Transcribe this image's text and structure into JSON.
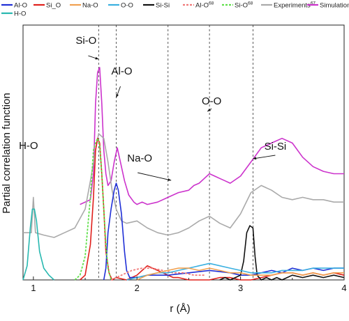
{
  "chart_data": {
    "type": "line",
    "xlabel": "r (Å)",
    "ylabel": "Partial correlation function",
    "xlim": [
      0.9,
      4.0
    ],
    "x_ticks": [
      "1",
      "2",
      "3",
      "4"
    ],
    "grid": false,
    "legend_placement": "top",
    "legend": [
      {
        "label": "Al-O",
        "color": "#1f2fd6",
        "style": "solid"
      },
      {
        "label": "Si_O",
        "color": "#e0201c",
        "style": "solid"
      },
      {
        "label": "Na-O",
        "color": "#f0a050",
        "style": "solid"
      },
      {
        "label": "O-O",
        "color": "#3ab0e0",
        "style": "solid"
      },
      {
        "label": "Si-Si",
        "color": "#111111",
        "style": "solid"
      },
      {
        "label": "Al-O",
        "sup": "68",
        "color": "#f07a7a",
        "style": "dashed"
      },
      {
        "label": "Si-O",
        "sup": "68",
        "color": "#5fe04a",
        "style": "dashed"
      },
      {
        "label": "Experiments",
        "sup": "67",
        "color": "#aaaaaa",
        "style": "solid"
      },
      {
        "label": "Simulation",
        "sup": "69",
        "color": "#cc33cc",
        "style": "solid"
      },
      {
        "label": "H-O",
        "color": "#28b8b0",
        "style": "solid"
      }
    ],
    "annotations": [
      {
        "text": "Si-O",
        "x": 1.63
      },
      {
        "text": "Al-O",
        "x": 1.8
      },
      {
        "text": "O-O",
        "x": 2.68
      },
      {
        "text": "H-O",
        "x": 1.0
      },
      {
        "text": "Na-O",
        "x": 2.33
      },
      {
        "text": "Si-Si",
        "x": 3.12
      }
    ],
    "reference_lines_x": [
      1.63,
      1.8,
      2.3,
      2.7,
      3.12
    ],
    "series": [
      {
        "name": "Simulation",
        "color": "#cc33cc",
        "x": [
          1.45,
          1.55,
          1.58,
          1.6,
          1.62,
          1.64,
          1.66,
          1.68,
          1.7,
          1.72,
          1.75,
          1.78,
          1.81,
          1.84,
          1.88,
          1.92,
          1.97,
          2.0,
          2.05,
          2.1,
          2.2,
          2.3,
          2.4,
          2.5,
          2.55,
          2.6,
          2.65,
          2.7,
          2.75,
          2.8,
          2.85,
          2.9,
          3.0,
          3.1,
          3.15,
          3.2,
          3.3,
          3.4,
          3.5,
          3.6,
          3.7,
          3.8,
          3.9,
          4.0
        ],
        "y": [
          0.32,
          0.34,
          0.45,
          0.75,
          0.88,
          0.9,
          0.75,
          0.55,
          0.45,
          0.4,
          0.42,
          0.5,
          0.56,
          0.5,
          0.42,
          0.36,
          0.33,
          0.32,
          0.33,
          0.32,
          0.33,
          0.35,
          0.37,
          0.38,
          0.4,
          0.41,
          0.43,
          0.45,
          0.44,
          0.43,
          0.42,
          0.41,
          0.44,
          0.5,
          0.53,
          0.56,
          0.58,
          0.6,
          0.58,
          0.52,
          0.48,
          0.46,
          0.45,
          0.45
        ]
      },
      {
        "name": "Experiments",
        "color": "#aaaaaa",
        "x": [
          0.9,
          0.98,
          1.0,
          1.02,
          1.1,
          1.2,
          1.3,
          1.4,
          1.5,
          1.55,
          1.6,
          1.63,
          1.68,
          1.72,
          1.76,
          1.8,
          1.85,
          1.9,
          2.0,
          2.1,
          2.2,
          2.3,
          2.4,
          2.5,
          2.6,
          2.7,
          2.8,
          2.9,
          3.0,
          3.1,
          3.2,
          3.3,
          3.4,
          3.5,
          3.6,
          3.7,
          3.8,
          3.9,
          4.0
        ],
        "y": [
          0.2,
          0.2,
          0.35,
          0.2,
          0.19,
          0.18,
          0.2,
          0.22,
          0.3,
          0.42,
          0.55,
          0.62,
          0.6,
          0.5,
          0.38,
          0.3,
          0.25,
          0.24,
          0.25,
          0.22,
          0.2,
          0.19,
          0.2,
          0.22,
          0.25,
          0.27,
          0.24,
          0.22,
          0.28,
          0.37,
          0.4,
          0.38,
          0.35,
          0.34,
          0.35,
          0.34,
          0.34,
          0.33,
          0.33
        ]
      },
      {
        "name": "Si_O",
        "color": "#e0201c",
        "x": [
          1.45,
          1.5,
          1.55,
          1.58,
          1.6,
          1.62,
          1.64,
          1.66,
          1.68,
          1.7,
          1.73,
          1.76,
          1.8,
          1.9,
          2.0,
          2.05,
          2.1,
          2.15,
          2.2,
          2.25,
          2.3,
          2.35,
          2.4,
          2.5,
          2.6,
          2.7,
          2.8,
          2.9,
          3.0,
          3.1,
          3.2,
          3.3,
          3.4,
          3.5,
          3.6,
          3.7,
          3.8,
          3.9,
          4.0
        ],
        "y": [
          0,
          0.02,
          0.15,
          0.35,
          0.55,
          0.6,
          0.58,
          0.45,
          0.3,
          0.12,
          0.03,
          0.0,
          0.01,
          0.0,
          0.02,
          0.04,
          0.06,
          0.05,
          0.04,
          0.03,
          0.02,
          0.01,
          0.01,
          0.0,
          0.0,
          0.0,
          0.01,
          0.01,
          0.0,
          0.0,
          0.01,
          0.02,
          0.03,
          0.03,
          0.02,
          0.03,
          0.02,
          0.03,
          0.02
        ]
      },
      {
        "name": "Al-O",
        "color": "#1f2fd6",
        "x": [
          1.68,
          1.7,
          1.72,
          1.75,
          1.78,
          1.8,
          1.82,
          1.85,
          1.88,
          1.9,
          1.93,
          2.0,
          2.1,
          2.3,
          2.5,
          2.7,
          2.9,
          3.0,
          3.1,
          3.2,
          3.3,
          3.4,
          3.5,
          3.6,
          3.7,
          3.8,
          3.9,
          4.0
        ],
        "y": [
          0,
          0.05,
          0.2,
          0.3,
          0.38,
          0.41,
          0.38,
          0.28,
          0.12,
          0.04,
          0.01,
          0.01,
          0.02,
          0.02,
          0.03,
          0.04,
          0.03,
          0.02,
          0.02,
          0.03,
          0.04,
          0.03,
          0.05,
          0.04,
          0.05,
          0.04,
          0.05,
          0.05
        ]
      },
      {
        "name": "Si-O ref.",
        "color": "#5fe04a",
        "dashed": true,
        "x": [
          1.4,
          1.45,
          1.5,
          1.55,
          1.58,
          1.6,
          1.62,
          1.64,
          1.66,
          1.68,
          1.7,
          1.72,
          1.75
        ],
        "y": [
          0.0,
          0.02,
          0.1,
          0.35,
          0.55,
          0.58,
          0.6,
          0.57,
          0.45,
          0.3,
          0.15,
          0.05,
          0.0
        ]
      },
      {
        "name": "Al-O ref.",
        "color": "#f07a7a",
        "dashed": true,
        "x": [
          1.75,
          1.85,
          1.95,
          2.05,
          2.15,
          2.25,
          2.35,
          2.45,
          2.55,
          2.65
        ],
        "y": [
          0.0,
          0.02,
          0.04,
          0.05,
          0.05,
          0.04,
          0.03,
          0.03,
          0.02,
          0.02
        ]
      },
      {
        "name": "H-O",
        "color": "#28b8b0",
        "x": [
          0.9,
          0.94,
          0.97,
          0.99,
          1.01,
          1.03,
          1.06,
          1.1,
          1.15,
          1.2
        ],
        "y": [
          0.0,
          0.06,
          0.22,
          0.3,
          0.3,
          0.25,
          0.12,
          0.05,
          0.02,
          0.0
        ]
      },
      {
        "name": "Si-Si",
        "color": "#111111",
        "x": [
          2.8,
          2.85,
          2.9,
          2.95,
          3.0,
          3.03,
          3.06,
          3.09,
          3.12,
          3.14,
          3.16,
          3.18,
          3.2,
          3.25,
          3.3,
          3.35,
          3.4,
          3.45,
          3.5,
          3.6,
          3.7,
          3.8,
          3.9,
          4.0
        ],
        "y": [
          0.0,
          0.01,
          0.0,
          0.01,
          0.02,
          0.08,
          0.2,
          0.23,
          0.22,
          0.1,
          0.02,
          0.01,
          0.0,
          0.01,
          0.0,
          0.01,
          0.0,
          0.01,
          0.02,
          0.01,
          0.02,
          0.01,
          0.02,
          0.01
        ]
      },
      {
        "name": "O-O",
        "color": "#3ab0e0",
        "x": [
          1.9,
          2.0,
          2.1,
          2.2,
          2.3,
          2.4,
          2.5,
          2.6,
          2.7,
          2.8,
          2.9,
          3.0,
          3.1,
          3.2,
          3.3,
          3.4,
          3.5,
          3.6,
          3.7,
          3.8,
          3.9,
          4.0
        ],
        "y": [
          0.0,
          0.01,
          0.02,
          0.03,
          0.03,
          0.04,
          0.05,
          0.06,
          0.07,
          0.06,
          0.05,
          0.04,
          0.03,
          0.03,
          0.03,
          0.04,
          0.04,
          0.04,
          0.05,
          0.05,
          0.05,
          0.05
        ]
      },
      {
        "name": "Na-O",
        "color": "#f0a050",
        "x": [
          2.0,
          2.1,
          2.2,
          2.3,
          2.4,
          2.5,
          2.6,
          2.7,
          2.8,
          2.9,
          3.0,
          3.1,
          3.2,
          3.3,
          3.4,
          3.5,
          3.6,
          3.7,
          3.8,
          3.9,
          4.0
        ],
        "y": [
          0.0,
          0.02,
          0.03,
          0.04,
          0.05,
          0.05,
          0.04,
          0.05,
          0.04,
          0.03,
          0.03,
          0.02,
          0.02,
          0.02,
          0.03,
          0.03,
          0.02,
          0.03,
          0.02,
          0.03,
          0.03
        ]
      }
    ]
  }
}
